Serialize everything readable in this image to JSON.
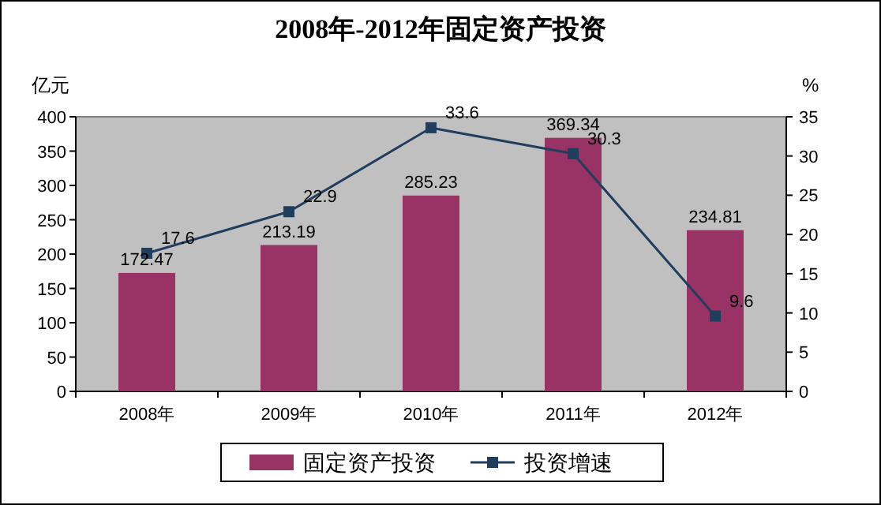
{
  "chart_data": {
    "type": "bar",
    "title": "2008年-2012年固定资产投资",
    "ylabel": "亿元",
    "y2label": "%",
    "categories": [
      "2008年",
      "2009年",
      "2010年",
      "2011年",
      "2012年"
    ],
    "series": [
      {
        "name": "固定资产投资",
        "color": "#993366",
        "values": [
          172.47,
          213.19,
          285.23,
          369.34,
          234.81
        ]
      },
      {
        "name": "投资增速",
        "type": "line",
        "axis": "y2",
        "color": "#1f3d5c",
        "values": [
          17.6,
          22.9,
          33.6,
          30.3,
          9.6
        ]
      }
    ],
    "ylim": [
      0,
      400
    ],
    "yticks": [
      0,
      50,
      100,
      150,
      200,
      250,
      300,
      350,
      400
    ],
    "y2lim": [
      0,
      35
    ],
    "y2ticks": [
      0,
      5,
      10,
      15,
      20,
      25,
      30,
      35
    ],
    "data_labels": true,
    "legend": "bottom",
    "marker": "square",
    "grid": false
  }
}
